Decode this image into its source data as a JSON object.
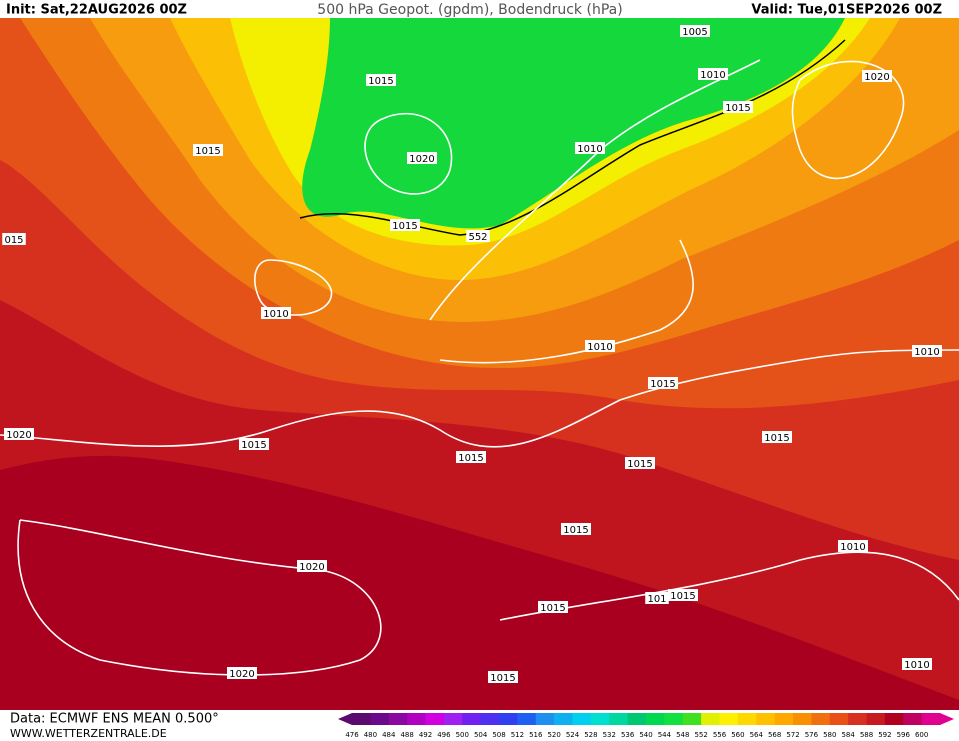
{
  "header": {
    "init": "Init: Sat,22AUG2026 00Z",
    "title": "500 hPa Geopot. (gpdm), Bodendruck (hPa)",
    "valid": "Valid: Tue,01SEP2026 00Z"
  },
  "isobar_labels": [
    "1005",
    "1010",
    "1015",
    "1015",
    "1020",
    "1015",
    "1020",
    "1010",
    "1015",
    "552",
    "015",
    "1010",
    "1010",
    "1015",
    "1010",
    "1020",
    "1015",
    "1015",
    "1015",
    "1015",
    "1015",
    "1010",
    "1020",
    "1015",
    "101",
    "1015",
    "1020",
    "1010",
    "1015"
  ],
  "footer": {
    "source": "Data: ECMWF ENS MEAN 0.500°",
    "site": "WWW.WETTERZENTRALE.DE"
  },
  "colorbar": {
    "labels": [
      476,
      480,
      484,
      488,
      492,
      496,
      500,
      504,
      508,
      512,
      516,
      520,
      524,
      528,
      532,
      536,
      540,
      544,
      548,
      552,
      556,
      560,
      564,
      568,
      572,
      576,
      580,
      584,
      588,
      592,
      596,
      600
    ],
    "colors": [
      "#5a0a6e",
      "#6a0a8a",
      "#8a0aa0",
      "#b000c0",
      "#d000e0",
      "#a020f0",
      "#7020f0",
      "#5030f0",
      "#3040f0",
      "#2060f0",
      "#2090f0",
      "#10b0f0",
      "#00d0f0",
      "#00e0d0",
      "#00d8a0",
      "#00c870",
      "#00d850",
      "#10e040",
      "#40e020",
      "#e0f000",
      "#fff000",
      "#ffd800",
      "#ffc000",
      "#ffa800",
      "#f89000",
      "#f07010",
      "#e85018",
      "#d83020",
      "#c81820",
      "#b00020",
      "#c00060",
      "#e00090"
    ]
  }
}
